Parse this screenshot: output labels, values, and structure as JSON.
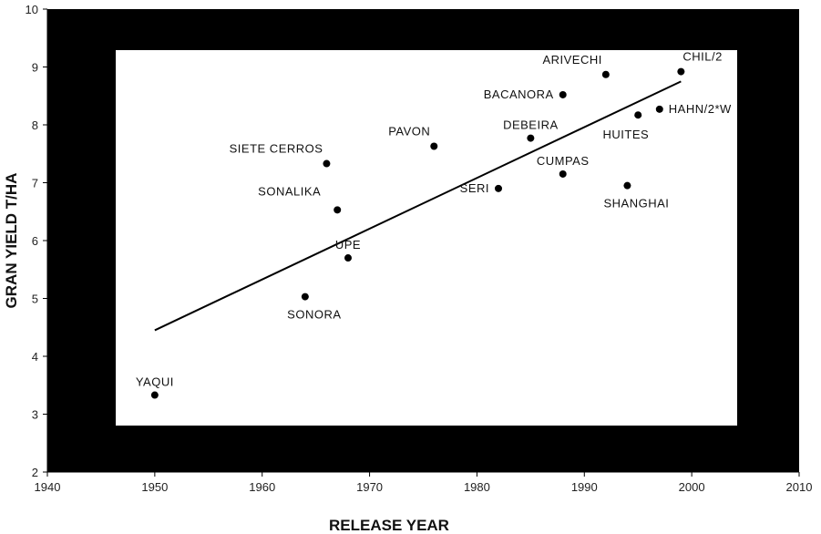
{
  "chart_data": {
    "type": "scatter",
    "xlabel": "RELEASE YEAR",
    "ylabel": "GRAN YIELD T/HA",
    "xlim": [
      1940,
      2010
    ],
    "ylim": [
      2,
      10
    ],
    "xticks": [
      1940,
      1950,
      1960,
      1970,
      1980,
      1990,
      2000,
      2010
    ],
    "yticks": [
      2,
      3,
      4,
      5,
      6,
      7,
      8,
      9,
      10
    ],
    "grid": false,
    "colors": {
      "frame": "#000000",
      "plot_area": "#ffffff",
      "points": "#000000",
      "trendline": "#000000"
    },
    "points": [
      {
        "label": "YAQUI",
        "x": 1950,
        "y": 3.33,
        "label_pos": "above"
      },
      {
        "label": "SONORA",
        "x": 1964,
        "y": 5.03,
        "label_pos": "below"
      },
      {
        "label": "SIETE CERROS",
        "x": 1966,
        "y": 7.33,
        "label_pos": "above-left"
      },
      {
        "label": "SONALIKA",
        "x": 1967,
        "y": 6.53,
        "label_pos": "upper-left"
      },
      {
        "label": "UPE",
        "x": 1968,
        "y": 5.7,
        "label_pos": "above"
      },
      {
        "label": "PAVON",
        "x": 1976,
        "y": 7.63,
        "label_pos": "above-left"
      },
      {
        "label": "SERI",
        "x": 1982,
        "y": 6.9,
        "label_pos": "left"
      },
      {
        "label": "DEBEIRA",
        "x": 1985,
        "y": 7.77,
        "label_pos": "above"
      },
      {
        "label": "CUMPAS",
        "x": 1988,
        "y": 7.15,
        "label_pos": "above"
      },
      {
        "label": "BACANORA",
        "x": 1988,
        "y": 8.52,
        "label_pos": "left"
      },
      {
        "label": "ARIVECHI",
        "x": 1992,
        "y": 8.87,
        "label_pos": "above-left"
      },
      {
        "label": "SHANGHAI",
        "x": 1994,
        "y": 6.95,
        "label_pos": "below"
      },
      {
        "label": "HUITES",
        "x": 1995,
        "y": 8.17,
        "label_pos": "below-left"
      },
      {
        "label": "HAHN/2*W",
        "x": 1997,
        "y": 8.27,
        "label_pos": "right"
      },
      {
        "label": "CHIL/2",
        "x": 1999,
        "y": 8.92,
        "label_pos": "above-right"
      }
    ],
    "trendline": {
      "x": [
        1950,
        1999
      ],
      "y": [
        4.45,
        8.75
      ]
    }
  }
}
